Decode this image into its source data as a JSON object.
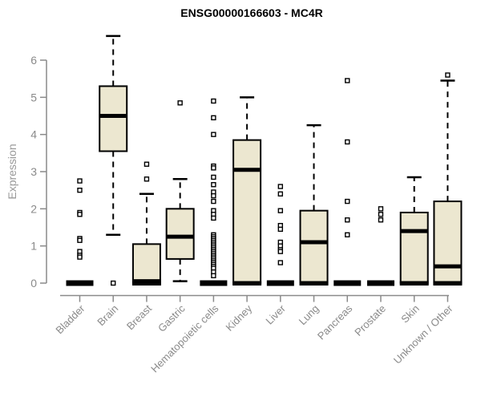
{
  "chart_data": {
    "type": "boxplot",
    "title": "ENSG00000166603 - MC4R",
    "ylabel": "Expression",
    "xlabel": "",
    "ylim": [
      0,
      6.8
    ],
    "yticks": [
      0,
      1,
      2,
      3,
      4,
      5,
      6
    ],
    "grid": false,
    "legend": "none",
    "colors": {
      "box_fill": "#ece7d0",
      "box_stroke": "#000000",
      "median": "#000000",
      "whisker": "#000000",
      "outlier_stroke": "#000000",
      "axis": "#8a8a8a",
      "tick_label": "#8a8a8a",
      "axis_label": "#999999",
      "title": "#000000",
      "background": "#ffffff"
    },
    "boxes": [
      {
        "category": "Bladder",
        "whisker_low": 0,
        "q1": 0,
        "median": 0,
        "q3": 0,
        "whisker_high": 0,
        "outliers": [
          2.75,
          2.5,
          1.9,
          1.85,
          1.2,
          1.15,
          0.85,
          0.75,
          0.7
        ]
      },
      {
        "category": "Brain",
        "whisker_low": 1.3,
        "q1": 3.55,
        "median": 4.5,
        "q3": 5.3,
        "whisker_high": 6.65,
        "outliers": [
          0
        ]
      },
      {
        "category": "Breast",
        "whisker_low": 0,
        "q1": 0,
        "median": 0.05,
        "q3": 1.05,
        "whisker_high": 2.4,
        "outliers": [
          3.2,
          2.8
        ]
      },
      {
        "category": "Gastric",
        "whisker_low": 0.05,
        "q1": 0.65,
        "median": 1.25,
        "q3": 2.0,
        "whisker_high": 2.8,
        "outliers": [
          4.85
        ]
      },
      {
        "category": "Hematopoietic cells",
        "whisker_low": 0,
        "q1": 0,
        "median": 0,
        "q3": 0,
        "whisker_high": 0,
        "outliers": [
          4.9,
          4.45,
          4.0,
          3.15,
          3.1,
          2.85,
          2.65,
          2.45,
          2.35,
          2.2,
          1.95,
          1.85,
          1.75,
          1.3,
          1.25,
          1.2,
          1.15,
          1.1,
          1.05,
          1.0,
          0.95,
          0.9,
          0.85,
          0.8,
          0.75,
          0.7,
          0.65,
          0.6,
          0.55,
          0.5,
          0.45,
          0.4,
          0.3,
          0.2
        ]
      },
      {
        "category": "Kidney",
        "whisker_low": 0,
        "q1": 0,
        "median": 3.05,
        "q3": 3.85,
        "whisker_high": 5.0,
        "outliers": []
      },
      {
        "category": "Liver",
        "whisker_low": 0,
        "q1": 0,
        "median": 0,
        "q3": 0,
        "whisker_high": 0,
        "outliers": [
          2.6,
          2.4,
          1.95,
          1.55,
          1.45,
          1.1,
          1.0,
          0.9,
          0.85,
          0.55
        ]
      },
      {
        "category": "Lung",
        "whisker_low": 0,
        "q1": 0,
        "median": 1.1,
        "q3": 1.95,
        "whisker_high": 4.25,
        "outliers": []
      },
      {
        "category": "Pancreas",
        "whisker_low": 0,
        "q1": 0,
        "median": 0,
        "q3": 0,
        "whisker_high": 0,
        "outliers": [
          5.45,
          3.8,
          2.2,
          1.7,
          1.3
        ]
      },
      {
        "category": "Prostate",
        "whisker_low": 0,
        "q1": 0,
        "median": 0,
        "q3": 0,
        "whisker_high": 0,
        "outliers": [
          2.0,
          1.85,
          1.7
        ]
      },
      {
        "category": "Skin",
        "whisker_low": 0,
        "q1": 0,
        "median": 1.4,
        "q3": 1.9,
        "whisker_high": 2.85,
        "outliers": []
      },
      {
        "category": "Unknown / Other",
        "whisker_low": 0,
        "q1": 0,
        "median": 0.45,
        "q3": 2.2,
        "whisker_high": 5.45,
        "outliers": [
          5.6
        ]
      }
    ]
  }
}
